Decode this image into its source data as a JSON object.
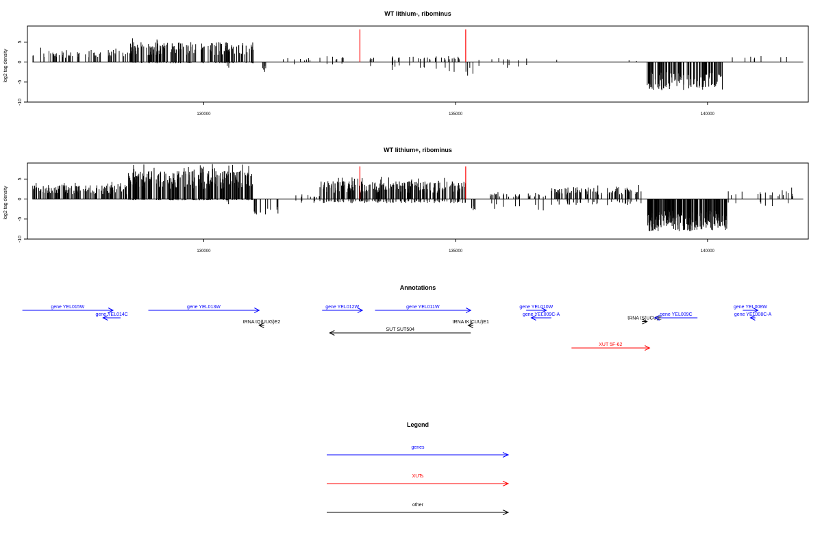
{
  "chart_data": [
    {
      "type": "bar",
      "title": "WT lithium-, ribominus",
      "ylabel": "log2 tag density",
      "xlabel": "",
      "xlim": [
        126500,
        142000
      ],
      "ylim": [
        -10,
        9
      ],
      "yticks": [
        -10,
        -5,
        0,
        5
      ],
      "xticks": [
        130000,
        135000,
        140000
      ],
      "xtick_labels": [
        "130000",
        "135000",
        "140000"
      ],
      "markers": [
        133100,
        135200
      ],
      "marker_color": "#ff0000",
      "bar_color": "#000000",
      "bars": [
        {
          "range": [
            126600,
            128500
          ],
          "plus": 3,
          "minus": 0,
          "n": 60
        },
        {
          "range": [
            128500,
            131000
          ],
          "plus": 5,
          "minus": 0.3,
          "n": 170
        },
        {
          "range": [
            130450,
            130500
          ],
          "plus": 0,
          "minus": 1.5,
          "n": 2
        },
        {
          "range": [
            131150,
            131250
          ],
          "plus": 0,
          "minus": 2.5,
          "n": 5
        },
        {
          "range": [
            131500,
            132300
          ],
          "plus": 1,
          "minus": 1.5,
          "n": 8
        },
        {
          "range": [
            132300,
            133000
          ],
          "plus": 1.5,
          "minus": 0.8,
          "n": 8
        },
        {
          "range": [
            133200,
            134700
          ],
          "plus": 1.5,
          "minus": 2,
          "n": 20
        },
        {
          "range": [
            134700,
            135100
          ],
          "plus": 1.5,
          "minus": 2.5,
          "n": 12
        },
        {
          "range": [
            135200,
            135350
          ],
          "plus": 0,
          "minus": 3.5,
          "n": 4
        },
        {
          "range": [
            135400,
            136500
          ],
          "plus": 1,
          "minus": 1.5,
          "n": 8
        },
        {
          "range": [
            137000,
            138800
          ],
          "plus": 0.8,
          "minus": 0,
          "n": 3
        },
        {
          "range": [
            138800,
            140300
          ],
          "plus": 0,
          "minus": 7,
          "n": 120
        },
        {
          "range": [
            140400,
            141700
          ],
          "plus": 1.5,
          "minus": 1,
          "n": 8
        }
      ]
    },
    {
      "type": "bar",
      "title": "WT lithium+, ribominus",
      "ylabel": "log2 tag density",
      "xlabel": "",
      "xlim": [
        126500,
        142000
      ],
      "ylim": [
        -10,
        9
      ],
      "yticks": [
        -10,
        -5,
        0,
        5
      ],
      "xticks": [
        130000,
        135000,
        140000
      ],
      "xtick_labels": [
        "130000",
        "135000",
        "140000"
      ],
      "markers": [
        133100,
        135200
      ],
      "marker_color": "#ff0000",
      "bar_color": "#000000",
      "bars": [
        {
          "range": [
            126600,
            128500
          ],
          "plus": 3.5,
          "minus": 0,
          "n": 140
        },
        {
          "range": [
            128500,
            131000
          ],
          "plus": 7,
          "minus": 0.3,
          "n": 260
        },
        {
          "range": [
            130450,
            130500
          ],
          "plus": 0,
          "minus": 1.5,
          "n": 2
        },
        {
          "range": [
            131000,
            131500
          ],
          "plus": 0,
          "minus": 4,
          "n": 14
        },
        {
          "range": [
            131800,
            132300
          ],
          "plus": 1,
          "minus": 1,
          "n": 10
        },
        {
          "range": [
            132300,
            135200
          ],
          "plus": 4.5,
          "minus": 1,
          "n": 240
        },
        {
          "range": [
            135200,
            135400
          ],
          "plus": 0,
          "minus": 4,
          "n": 6
        },
        {
          "range": [
            135600,
            136800
          ],
          "plus": 1.5,
          "minus": 3,
          "n": 30
        },
        {
          "range": [
            136900,
            138700
          ],
          "plus": 3,
          "minus": 1.5,
          "n": 90
        },
        {
          "range": [
            138800,
            140400
          ],
          "plus": 0,
          "minus": 8,
          "n": 220
        },
        {
          "range": [
            140400,
            141700
          ],
          "plus": 2,
          "minus": 2,
          "n": 18
        },
        {
          "range": [
            141650,
            141700
          ],
          "plus": 3,
          "minus": 0,
          "n": 2
        }
      ]
    }
  ],
  "annotations": {
    "title": "Annotations",
    "xlim": [
      126500,
      142000
    ],
    "items": [
      {
        "label": "gene YEL015W",
        "type": "genes",
        "start": 126400,
        "end": 128200,
        "row": 0
      },
      {
        "label": "gene YEL014C",
        "type": "genes",
        "start": 128000,
        "end": 128350,
        "row": 1
      },
      {
        "label": "gene YEL013W",
        "type": "genes",
        "start": 128900,
        "end": 131100,
        "row": 0
      },
      {
        "label": "gene YEL012W",
        "type": "genes",
        "start": 132350,
        "end": 133150,
        "row": 0
      },
      {
        "label": "gene YEL011W",
        "type": "genes",
        "start": 133400,
        "end": 135300,
        "row": 0
      },
      {
        "label": "gene YEL010W",
        "type": "genes",
        "start": 136400,
        "end": 136800,
        "row": 0
      },
      {
        "label": "gene YEL009C-A",
        "type": "genes",
        "start": 136500,
        "end": 136900,
        "row": 1
      },
      {
        "label": "gene YEL009C",
        "type": "genes",
        "start": 138950,
        "end": 139800,
        "row": 1
      },
      {
        "label": "gene YEL008W",
        "type": "genes",
        "start": 140700,
        "end": 141000,
        "row": 0
      },
      {
        "label": "gene YEL008C-A",
        "type": "genes",
        "start": 140850,
        "end": 140950,
        "row": 1
      },
      {
        "label": "tRNA tQ(UUG)E2",
        "type": "other",
        "start": 131100,
        "end": 131200,
        "row": 2
      },
      {
        "label": "tRNA tK(CUU)E1",
        "type": "other",
        "start": 135250,
        "end": 135350,
        "row": 2
      },
      {
        "label": "tRNA tS(UCU)E",
        "type": "other",
        "start": 138700,
        "end": 138800,
        "row": 1.5
      },
      {
        "label": "SUT SUT504",
        "type": "other",
        "start": 132500,
        "end": 135300,
        "row": 3
      },
      {
        "label": "XUT 5F-62",
        "type": "XUTs",
        "start": 137300,
        "end": 138850,
        "row": 5
      }
    ]
  },
  "legend": {
    "title": "Legend",
    "entries": [
      {
        "label": "genes",
        "color": "#0000ff"
      },
      {
        "label": "XUTs",
        "color": "#ff0000"
      },
      {
        "label": "other",
        "color": "#000000"
      }
    ]
  },
  "colors": {
    "genes": "#0000ff",
    "XUTs": "#ff0000",
    "other": "#000000"
  }
}
